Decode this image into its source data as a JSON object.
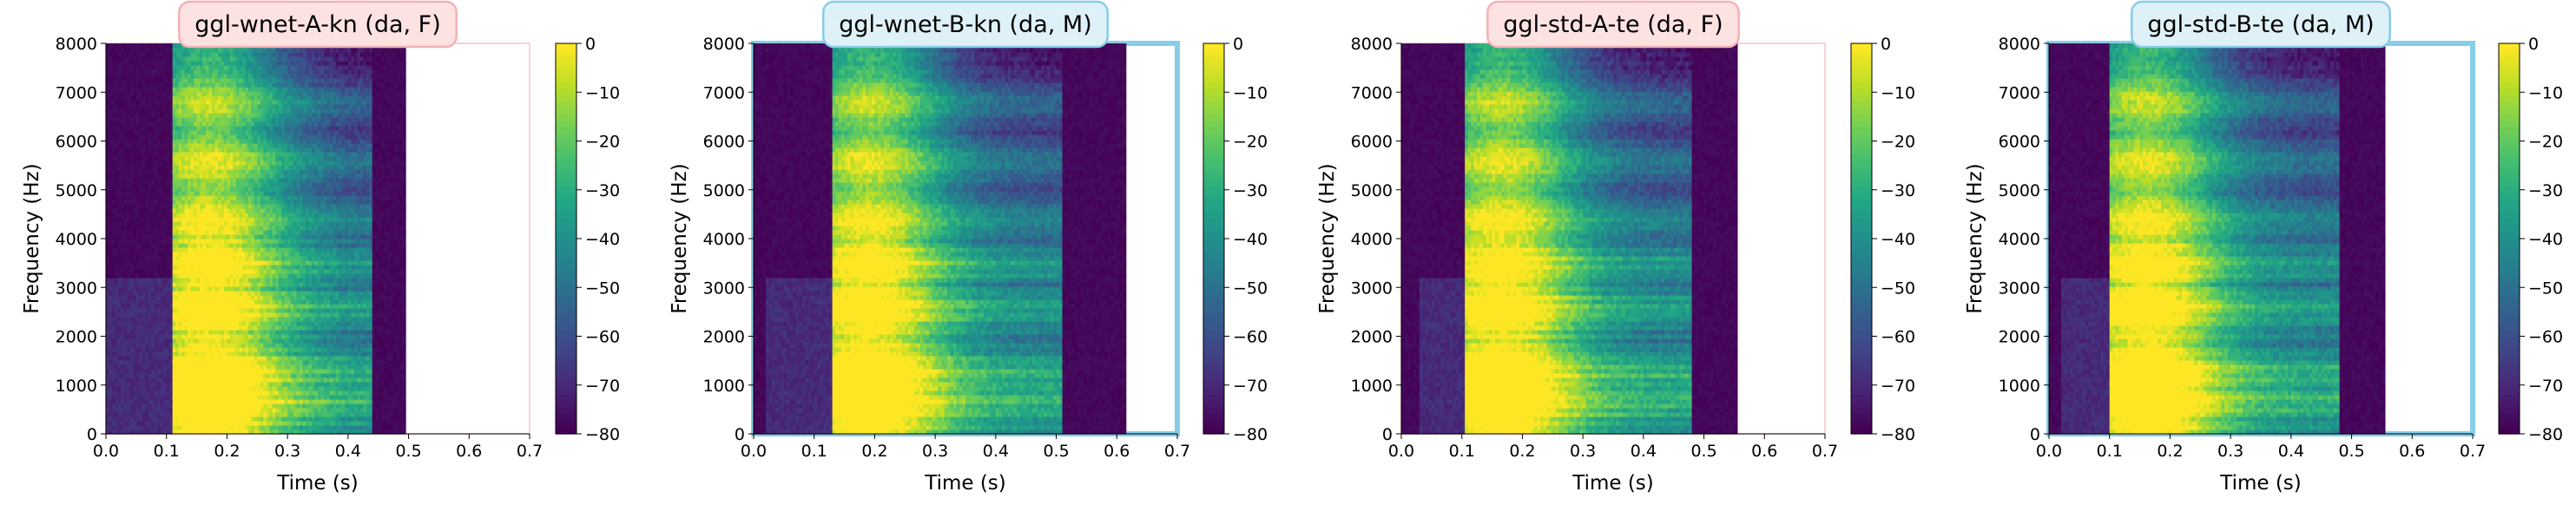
{
  "chart_data": [
    {
      "type": "heatmap",
      "title": "ggl-wnet-A-kn (da, F)",
      "title_style": "pink",
      "frame_color": "#f7c4c8",
      "xlabel": "Time (s)",
      "ylabel": "Frequency (Hz)",
      "xlim": [
        0.0,
        0.7
      ],
      "ylim": [
        0,
        8000
      ],
      "xticks": [
        "0.0",
        "0.1",
        "0.2",
        "0.3",
        "0.4",
        "0.5",
        "0.6",
        "0.7"
      ],
      "yticks": [
        "0",
        "1000",
        "2000",
        "3000",
        "4000",
        "5000",
        "6000",
        "7000",
        "8000"
      ],
      "colorbar": {
        "min": -80,
        "max": 0,
        "ticks": [
          "0",
          "−10",
          "−20",
          "−30",
          "−40",
          "−50",
          "−60",
          "−70",
          "−80"
        ]
      },
      "colormap": "viridis",
      "signal": {
        "duration": 0.495,
        "onset": 0.11,
        "burst_onset": 0.0,
        "energy_end": 0.38,
        "f0": 220,
        "seed": 3
      }
    },
    {
      "type": "heatmap",
      "title": "ggl-wnet-B-kn (da, M)",
      "title_style": "blue",
      "frame_color": "#87cde8",
      "xlabel": "Time (s)",
      "ylabel": "Frequency (Hz)",
      "xlim": [
        0.0,
        0.7
      ],
      "ylim": [
        0,
        8000
      ],
      "xticks": [
        "0.0",
        "0.1",
        "0.2",
        "0.3",
        "0.4",
        "0.5",
        "0.6",
        "0.7"
      ],
      "yticks": [
        "0",
        "1000",
        "2000",
        "3000",
        "4000",
        "5000",
        "6000",
        "7000",
        "8000"
      ],
      "colorbar": {
        "min": -80,
        "max": 0,
        "ticks": [
          "0",
          "−10",
          "−20",
          "−30",
          "−40",
          "−50",
          "−60",
          "−70",
          "−80"
        ]
      },
      "colormap": "viridis",
      "signal": {
        "duration": 0.615,
        "onset": 0.13,
        "burst_onset": 0.02,
        "energy_end": 0.45,
        "f0": 130,
        "seed": 7
      }
    },
    {
      "type": "heatmap",
      "title": "ggl-std-A-te (da, F)",
      "title_style": "pink",
      "frame_color": "#f7c4c8",
      "xlabel": "Time (s)",
      "ylabel": "Frequency (Hz)",
      "xlim": [
        0.0,
        0.7
      ],
      "ylim": [
        0,
        8000
      ],
      "xticks": [
        "0.0",
        "0.1",
        "0.2",
        "0.3",
        "0.4",
        "0.5",
        "0.6",
        "0.7"
      ],
      "yticks": [
        "0",
        "1000",
        "2000",
        "3000",
        "4000",
        "5000",
        "6000",
        "7000",
        "8000"
      ],
      "colorbar": {
        "min": -80,
        "max": 0,
        "ticks": [
          "0",
          "−10",
          "−20",
          "−30",
          "−40",
          "−50",
          "−60",
          "−70",
          "−80"
        ]
      },
      "colormap": "viridis",
      "signal": {
        "duration": 0.555,
        "onset": 0.105,
        "burst_onset": 0.03,
        "energy_end": 0.42,
        "f0": 200,
        "seed": 11
      }
    },
    {
      "type": "heatmap",
      "title": "ggl-std-B-te (da, M)",
      "title_style": "blue",
      "frame_color": "#87cde8",
      "xlabel": "Time (s)",
      "ylabel": "Frequency (Hz)",
      "xlim": [
        0.0,
        0.7
      ],
      "ylim": [
        0,
        8000
      ],
      "xticks": [
        "0.0",
        "0.1",
        "0.2",
        "0.3",
        "0.4",
        "0.5",
        "0.6",
        "0.7"
      ],
      "yticks": [
        "0",
        "1000",
        "2000",
        "3000",
        "4000",
        "5000",
        "6000",
        "7000",
        "8000"
      ],
      "colorbar": {
        "min": -80,
        "max": 0,
        "ticks": [
          "0",
          "−10",
          "−20",
          "−30",
          "−40",
          "−50",
          "−60",
          "−70",
          "−80"
        ]
      },
      "colormap": "viridis",
      "signal": {
        "duration": 0.555,
        "onset": 0.1,
        "burst_onset": 0.02,
        "energy_end": 0.42,
        "f0": 125,
        "seed": 19
      }
    }
  ],
  "colors": {
    "pink_fill": "#fde2e2",
    "pink_edge": "#f4b1b6",
    "blue_fill": "#dff1f8",
    "blue_edge": "#87cde8",
    "axis": "#000000",
    "background": "#ffffff"
  }
}
